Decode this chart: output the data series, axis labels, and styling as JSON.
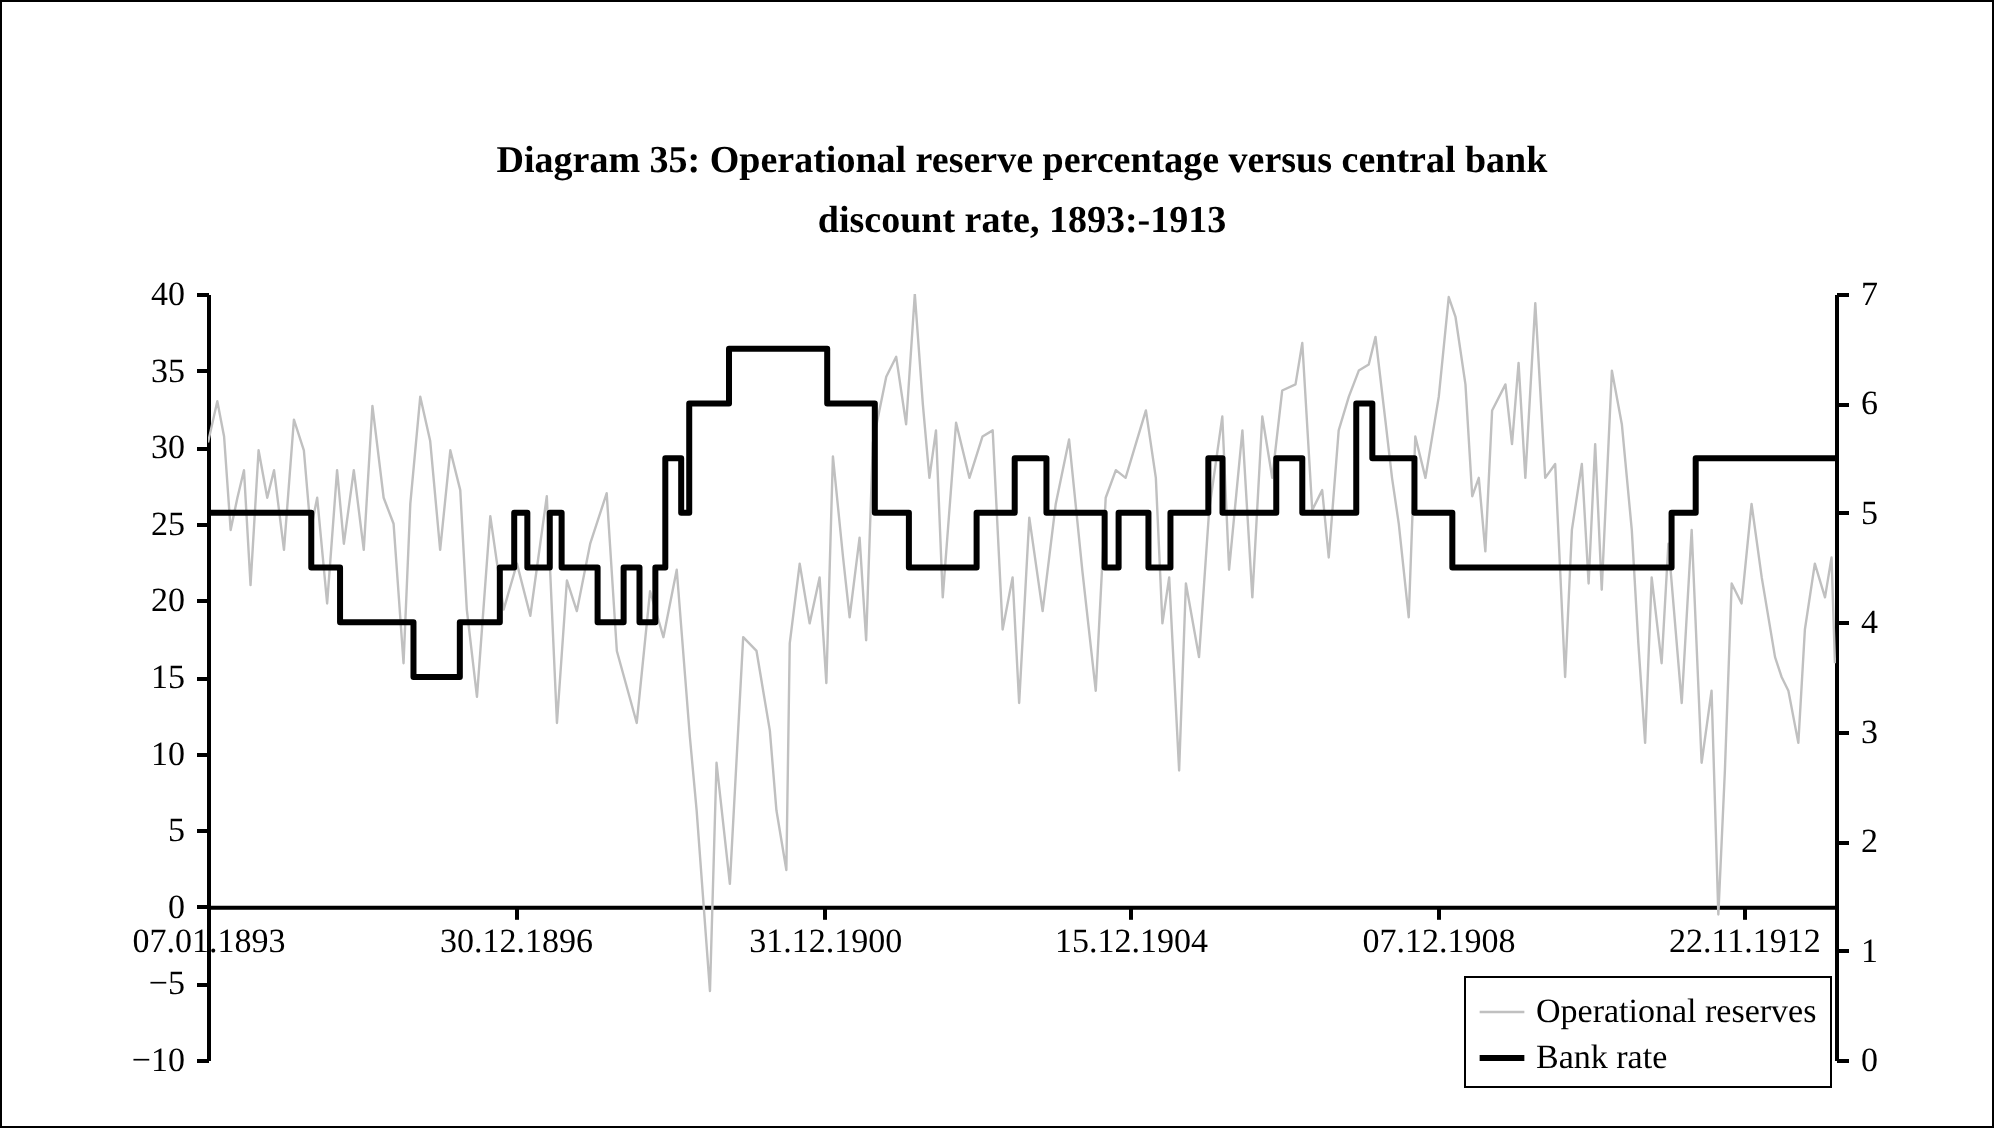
{
  "chart_data": {
    "type": "line",
    "title": "Diagram 35:  Operational reserve percentage versus central bank discount rate, 1893:-1913",
    "xlim": [
      "1893-01-07",
      "1914-01-31"
    ],
    "xticks": [
      {
        "value": "1893-01-07",
        "label": "07.01.1893"
      },
      {
        "value": "1896-12-30",
        "label": "30.12.1896"
      },
      {
        "value": "1900-12-31",
        "label": "31.12.1900"
      },
      {
        "value": "1904-12-15",
        "label": "15.12.1904"
      },
      {
        "value": "1908-12-07",
        "label": "07.12.1908"
      },
      {
        "value": "1912-11-22",
        "label": "22.11.1912"
      }
    ],
    "ylim": [
      -10,
      40
    ],
    "yticks": [
      -10,
      -5,
      0,
      5,
      10,
      15,
      20,
      25,
      30,
      35,
      40
    ],
    "y2lim": [
      0,
      7
    ],
    "y2ticks": [
      0,
      1,
      2,
      3,
      4,
      5,
      6,
      7
    ],
    "legend": "bottom right",
    "series": [
      {
        "name": "Operational reserves",
        "color": "#c0c0c0",
        "x": [
          "1893-01-07",
          "1893-02-20",
          "1893-03-24",
          "1893-04-24",
          "1893-05-26",
          "1893-06-26",
          "1893-07-27",
          "1893-09-03",
          "1893-10-14",
          "1893-11-15",
          "1894-01-01",
          "1894-02-17",
          "1894-04-05",
          "1894-05-07",
          "1894-06-07",
          "1894-07-24",
          "1894-09-09",
          "1894-10-11",
          "1894-11-27",
          "1895-01-13",
          "1895-02-23",
          "1895-04-17",
          "1895-06-03",
          "1895-07-20",
          "1895-08-21",
          "1895-10-07",
          "1895-11-23",
          "1896-01-09",
          "1896-02-26",
          "1896-04-13",
          "1896-05-14",
          "1896-07-01",
          "1896-09-02",
          "1896-11-04",
          "1897-01-06",
          "1897-03-10",
          "1897-05-27",
          "1897-07-14",
          "1897-08-30",
          "1897-10-16",
          "1897-12-18",
          "1898-03-06",
          "1898-04-23",
          "1898-07-26",
          "1898-09-27",
          "1898-11-29",
          "1899-01-31",
          "1899-04-03",
          "1899-05-05",
          "1899-07-07",
          "1899-08-07",
          "1899-10-09",
          "1899-12-11",
          "1900-02-12",
          "1900-04-16",
          "1900-05-17",
          "1900-07-03",
          "1900-07-19",
          "1900-09-04",
          "1900-10-21",
          "1900-12-07",
          "1901-01-08",
          "1901-02-08",
          "1901-03-28",
          "1901-04-28",
          "1901-06-14",
          "1901-07-15",
          "1901-08-16",
          "1901-10-18",
          "1901-12-04",
          "1902-01-20",
          "1902-03-02",
          "1902-04-09",
          "1902-05-10",
          "1902-06-10",
          "1902-07-12",
          "1902-09-13",
          "1902-11-15",
          "1903-01-16",
          "1903-03-05",
          "1903-04-21",
          "1903-06-07",
          "1903-07-08",
          "1903-08-25",
          "1903-10-27",
          "1903-12-28",
          "1904-02-29",
          "1904-05-02",
          "1904-07-04",
          "1904-08-20",
          "1904-10-07",
          "1904-11-22",
          "1905-01-09",
          "1905-02-26",
          "1905-04-14",
          "1905-05-15",
          "1905-06-16",
          "1905-08-02",
          "1905-09-03",
          "1905-11-04",
          "1905-12-22",
          "1906-02-22",
          "1906-03-26",
          "1906-05-28",
          "1906-07-14",
          "1906-08-30",
          "1906-10-16",
          "1906-12-02",
          "1907-02-03",
          "1907-03-07",
          "1907-04-23",
          "1907-06-09",
          "1907-07-10",
          "1907-08-26",
          "1907-10-13",
          "1907-11-29",
          "1908-01-15",
          "1908-02-16",
          "1908-04-03",
          "1908-05-04",
          "1908-06-05",
          "1908-07-22",
          "1908-08-22",
          "1908-10-09",
          "1908-12-11",
          "1909-01-27",
          "1909-02-28",
          "1909-04-16",
          "1909-05-18",
          "1909-06-18",
          "1909-07-19",
          "1909-08-20",
          "1909-10-22",
          "1909-11-22",
          "1909-12-23",
          "1910-01-24",
          "1910-03-12",
          "1910-04-28",
          "1910-06-14",
          "1910-07-31",
          "1910-09-01",
          "1910-10-18",
          "1910-11-19",
          "1910-12-20",
          "1911-01-20",
          "1911-03-09",
          "1911-04-25",
          "1911-06-11",
          "1911-07-12",
          "1911-08-13",
          "1911-09-13",
          "1911-10-30",
          "1911-12-01",
          "1912-02-02",
          "1912-03-20",
          "1912-05-06",
          "1912-06-22",
          "1912-07-24",
          "1912-08-24",
          "1912-09-25",
          "1912-11-11",
          "1912-12-28",
          "1913-02-14",
          "1913-04-18",
          "1913-05-19",
          "1913-06-20",
          "1913-08-06",
          "1913-09-06",
          "1913-10-23",
          "1913-12-10",
          "1914-01-10",
          "1914-01-26"
        ],
        "values": [
          30.3,
          33.0,
          30.7,
          24.6,
          26.7,
          28.5,
          21.0,
          29.8,
          26.7,
          28.5,
          23.3,
          31.8,
          29.8,
          24.6,
          26.7,
          19.8,
          28.5,
          23.7,
          28.5,
          23.3,
          32.7,
          26.7,
          25.0,
          15.9,
          26.3,
          33.3,
          30.4,
          23.3,
          29.8,
          27.2,
          19.4,
          13.7,
          25.5,
          19.4,
          22.4,
          19.0,
          26.8,
          12.0,
          21.3,
          19.3,
          23.7,
          27.0,
          16.7,
          12.0,
          20.6,
          17.6,
          22.0,
          11.1,
          6.3,
          -5.5,
          9.4,
          1.5,
          17.6,
          16.7,
          11.5,
          6.3,
          2.4,
          17.2,
          22.4,
          18.5,
          21.5,
          14.6,
          29.4,
          22.8,
          18.9,
          24.1,
          17.4,
          30.3,
          34.6,
          35.9,
          31.5,
          40,
          32.8,
          28.0,
          31.1,
          20.2,
          31.6,
          28.0,
          30.7,
          31.1,
          18.1,
          21.5,
          13.3,
          25.4,
          19.3,
          26.3,
          30.5,
          21.9,
          14.1,
          26.7,
          28.5,
          28.0,
          30.2,
          32.4,
          28.0,
          18.5,
          21.5,
          8.9,
          21.1,
          16.3,
          25.9,
          32.0,
          22.0,
          31.1,
          20.2,
          32.0,
          28.0,
          33.7,
          34.1,
          36.8,
          25.9,
          27.2,
          22.8,
          31.1,
          33.3,
          35.0,
          35.4,
          37.2,
          31.7,
          28.0,
          25.0,
          18.9,
          30.7,
          28.0,
          33.3,
          39.8,
          38.5,
          34.1,
          26.8,
          28.0,
          23.2,
          32.4,
          34.1,
          30.2,
          35.5,
          28.0,
          39.4,
          28.0,
          28.9,
          15.0,
          24.6,
          28.9,
          21.1,
          30.2,
          20.7,
          35.0,
          31.5,
          24.6,
          17.2,
          10.7,
          21.5,
          15.9,
          23.7,
          13.3,
          24.6,
          9.4,
          14.1,
          -0.5,
          8.9,
          21.1,
          19.8,
          26.3,
          21.5,
          16.3,
          15.0,
          14.1,
          10.7,
          18.1,
          22.4,
          20.2,
          22.8,
          15.9
        ]
      },
      {
        "name": "Bank rate",
        "type": "step",
        "axis": "y2",
        "color": "#000000",
        "x": [
          "1893-01-07",
          "1894-05-10",
          "1894-09-23",
          "1895-09-05",
          "1896-04-11",
          "1896-10-17",
          "1896-12-24",
          "1897-02-24",
          "1897-06-10",
          "1897-08-05",
          "1898-01-22",
          "1898-05-25",
          "1898-08-08",
          "1898-10-22",
          "1898-12-08",
          "1899-02-21",
          "1899-03-31",
          "1899-10-05",
          "1901-01-12",
          "1901-08-25",
          "1902-02-02",
          "1902-12-19",
          "1903-06-17",
          "1903-11-14",
          "1904-08-15",
          "1904-10-20",
          "1905-03-10",
          "1905-06-22",
          "1905-12-18",
          "1906-02-23",
          "1906-11-04",
          "1907-03-07",
          "1907-11-17",
          "1908-02-01",
          "1908-08-18",
          "1909-02-13",
          "1911-12-16",
          "1912-04-08",
          "1914-01-31"
        ],
        "values": [
          5,
          4.5,
          4,
          3.5,
          4,
          4.5,
          5,
          4.5,
          5,
          4.5,
          4,
          4.5,
          4,
          4.5,
          5.5,
          5,
          6,
          6.5,
          6,
          5,
          4.5,
          5,
          5.5,
          5,
          4.5,
          5,
          4.5,
          5,
          5.5,
          5,
          5.5,
          5,
          6,
          5.5,
          5,
          4.5,
          5,
          5.5,
          5.5
        ]
      }
    ]
  }
}
